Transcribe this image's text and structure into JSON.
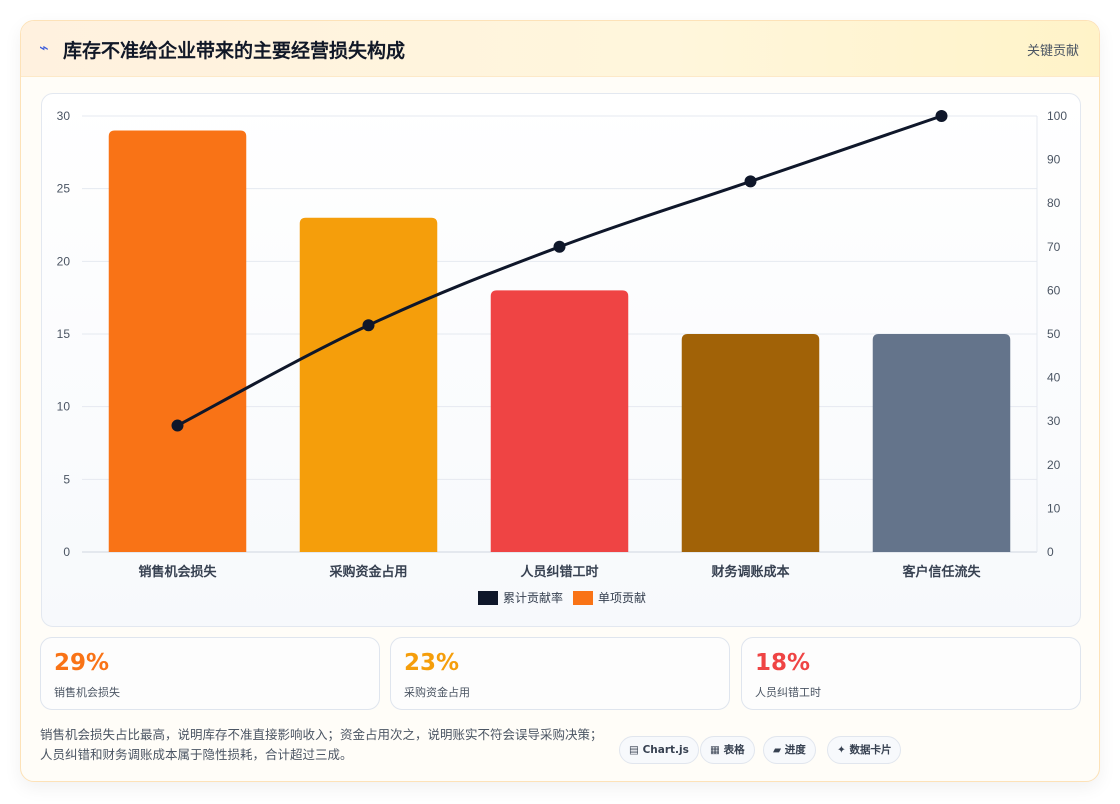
{
  "header": {
    "icon": "lightning-icon",
    "title": "库存不准给企业带来的主要经营损失构成",
    "badge": "关键贡献"
  },
  "chart_data": {
    "type": "bar",
    "categories": [
      "销售机会损失",
      "采购资金占用",
      "人员纠错工时",
      "财务调账成本",
      "客户信任流失"
    ],
    "series": [
      {
        "name": "单项贡献",
        "kind": "bar",
        "axis": "left",
        "values": [
          29,
          23,
          18,
          15,
          15
        ],
        "colors": [
          "#f97316",
          "#f59e0b",
          "#ef4444",
          "#a16207",
          "#64748b"
        ]
      },
      {
        "name": "累计贡献率",
        "kind": "line",
        "axis": "right",
        "values": [
          29,
          52,
          70,
          85,
          100
        ],
        "color": "#0f172a"
      }
    ],
    "ylim_left": [
      0,
      30
    ],
    "yticks_left": [
      0,
      5,
      10,
      15,
      20,
      25,
      30
    ],
    "ylim_right": [
      0,
      100
    ],
    "yticks_right": [
      0,
      10,
      20,
      30,
      40,
      50,
      60,
      70,
      80,
      90,
      100
    ],
    "grid": true,
    "legend_position": "bottom-center",
    "legend": [
      {
        "name": "累计贡献率",
        "color": "#0f172a"
      },
      {
        "name": "单项贡献",
        "color": "#f97316"
      }
    ]
  },
  "stats": [
    {
      "value": "29%",
      "label": "销售机会损失",
      "color": "#f97316"
    },
    {
      "value": "23%",
      "label": "采购资金占用",
      "color": "#f59e0b"
    },
    {
      "value": "18%",
      "label": "人员纠错工时",
      "color": "#ef4444"
    }
  ],
  "footnote": "销售机会损失占比最高，说明库存不准直接影响收入；资金占用次之，说明账实不符会误导采购决策；人员纠错和财务调账成本属于隐性损耗，合计超过三成。",
  "chips": [
    {
      "label": "▤ Chart.js",
      "icon": "chart-icon"
    },
    {
      "label": "▦ 表格",
      "icon": "table-icon"
    },
    {
      "label": "▰ 进度",
      "icon": "progress-icon"
    },
    {
      "label": "✦ 数据卡片",
      "icon": "sparkle-icon"
    }
  ]
}
